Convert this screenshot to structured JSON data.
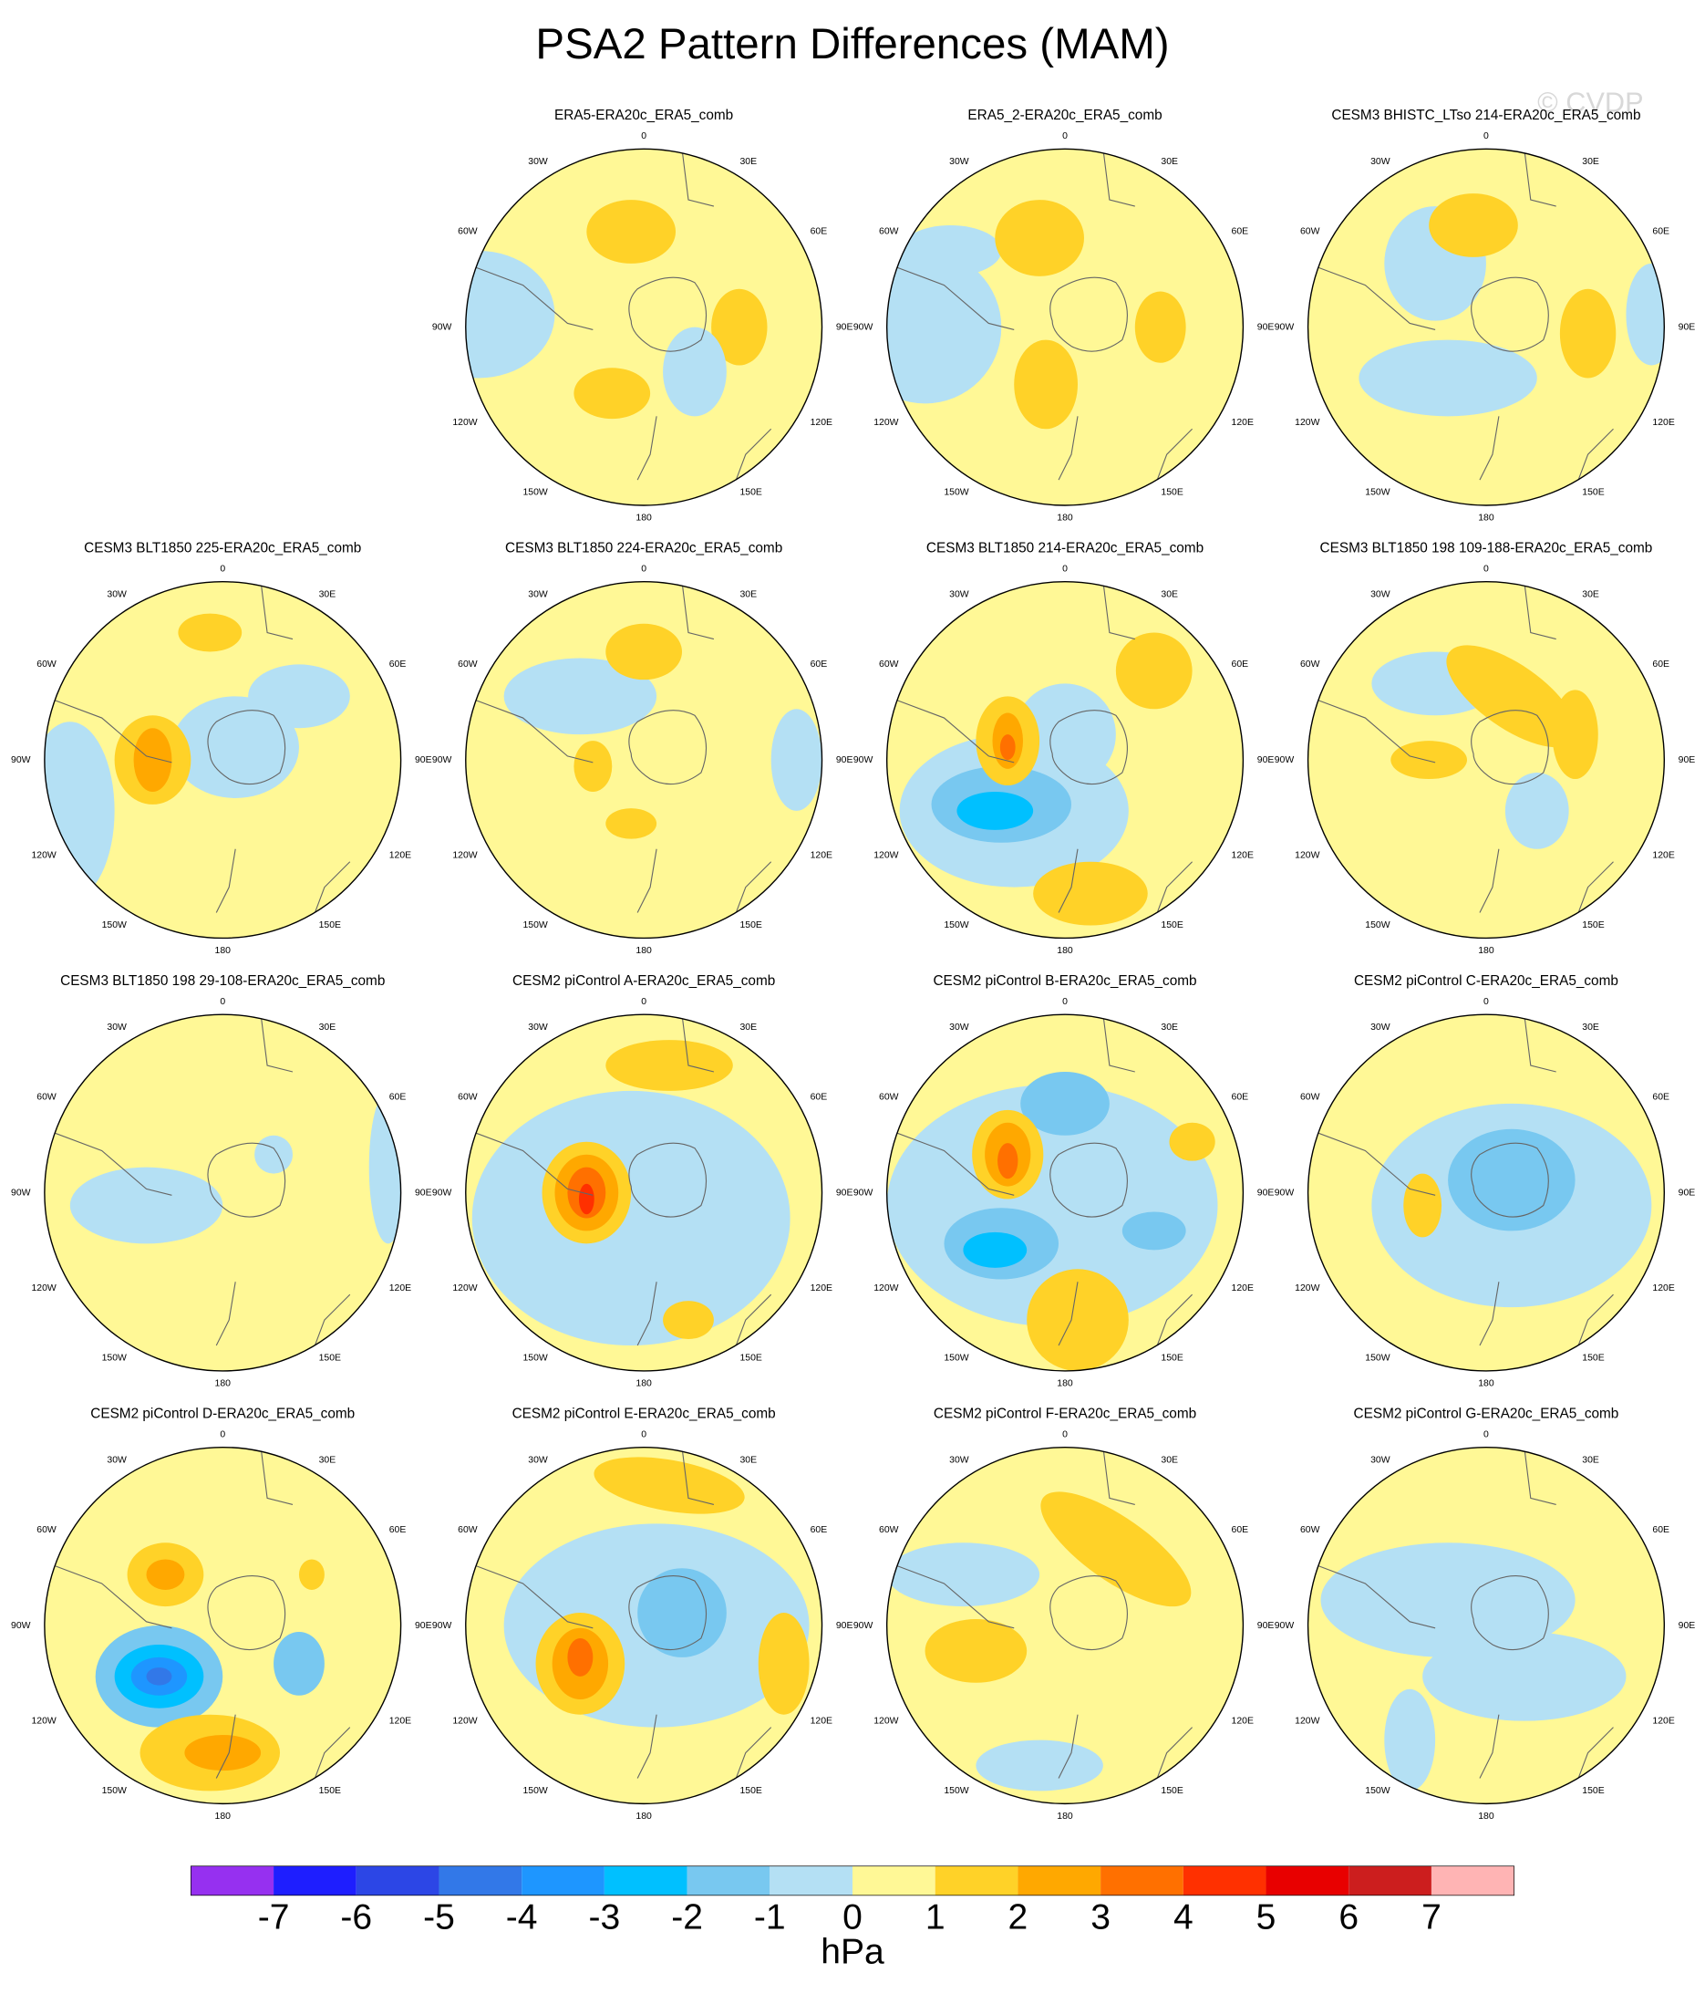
{
  "title": "PSA2 Pattern Differences (MAM)",
  "watermark": "© CVDP",
  "panels": [
    "ERA5-ERA20c_ERA5_comb",
    "ERA5_2-ERA20c_ERA5_comb",
    "CESM3 BHISTC_LTso 214-ERA20c_ERA5_comb",
    "CESM3 BLT1850 225-ERA20c_ERA5_comb",
    "CESM3 BLT1850 224-ERA20c_ERA5_comb",
    "CESM3 BLT1850 214-ERA20c_ERA5_comb",
    "CESM3 BLT1850 198 109-188-ERA20c_ERA5_comb",
    "CESM3 BLT1850 198 29-108-ERA20c_ERA5_comb",
    "CESM2 piControl A-ERA20c_ERA5_comb",
    "CESM2 piControl B-ERA20c_ERA5_comb",
    "CESM2 piControl C-ERA20c_ERA5_comb",
    "CESM2 piControl D-ERA20c_ERA5_comb",
    "CESM2 piControl E-ERA20c_ERA5_comb",
    "CESM2 piControl F-ERA20c_ERA5_comb",
    "CESM2 piControl G-ERA20c_ERA5_comb"
  ],
  "longitude_labels": [
    "0",
    "30E",
    "60E",
    "90E",
    "120E",
    "150E",
    "180",
    "150W",
    "120W",
    "90W",
    "60W",
    "30W"
  ],
  "colorbar": {
    "colors": [
      "#9630f0",
      "#1e1eff",
      "#2c46e6",
      "#3278e8",
      "#1e96ff",
      "#00c0ff",
      "#78c8f0",
      "#b4e0f4",
      "#fff896",
      "#ffd228",
      "#ffa800",
      "#ff7000",
      "#ff3000",
      "#e80000",
      "#cc1e1e",
      "#ffb4b4"
    ],
    "ticks": [
      -7,
      -6,
      -5,
      -4,
      -3,
      -2,
      -1,
      0,
      1,
      2,
      3,
      4,
      5,
      6,
      7
    ],
    "xlim": [
      -8,
      8
    ],
    "label": "hPa"
  }
}
